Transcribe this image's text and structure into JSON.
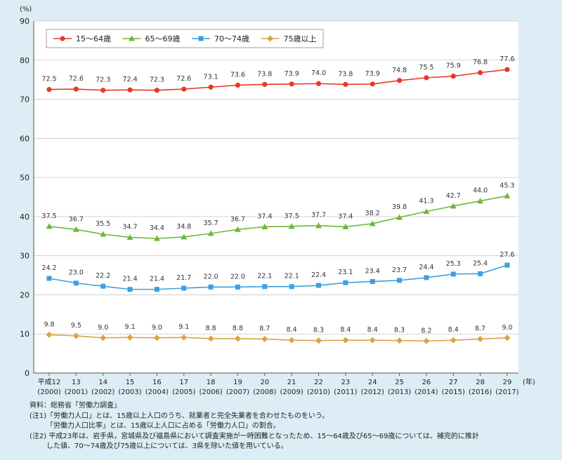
{
  "chart_data": {
    "type": "line",
    "unit_label": "(%)",
    "x_unit_label": "(年)",
    "ylim": [
      0,
      90
    ],
    "yticks": [
      0,
      10,
      20,
      30,
      40,
      50,
      60,
      70,
      80,
      90
    ],
    "legend_position": "top-left",
    "grid": true,
    "categories": [
      {
        "line1": "平成12",
        "line2": "(2000)"
      },
      {
        "line1": "13",
        "line2": "(2001)"
      },
      {
        "line1": "14",
        "line2": "(2002)"
      },
      {
        "line1": "15",
        "line2": "(2003)"
      },
      {
        "line1": "16",
        "line2": "(2004)"
      },
      {
        "line1": "17",
        "line2": "(2005)"
      },
      {
        "line1": "18",
        "line2": "(2006)"
      },
      {
        "line1": "19",
        "line2": "(2007)"
      },
      {
        "line1": "20",
        "line2": "(2008)"
      },
      {
        "line1": "21",
        "line2": "(2009)"
      },
      {
        "line1": "22",
        "line2": "(2010)"
      },
      {
        "line1": "23",
        "line2": "(2011)"
      },
      {
        "line1": "24",
        "line2": "(2012)"
      },
      {
        "line1": "25",
        "line2": "(2013)"
      },
      {
        "line1": "26",
        "line2": "(2014)"
      },
      {
        "line1": "27",
        "line2": "(2015)"
      },
      {
        "line1": "28",
        "line2": "(2016)"
      },
      {
        "line1": "29",
        "line2": "(2017)"
      }
    ],
    "series": [
      {
        "name": "15～64歳",
        "color": "#e8382a",
        "marker": "circle",
        "values": [
          72.5,
          72.6,
          72.3,
          72.4,
          72.3,
          72.6,
          73.1,
          73.6,
          73.8,
          73.9,
          74.0,
          73.8,
          73.9,
          74.8,
          75.5,
          75.9,
          76.8,
          77.6
        ]
      },
      {
        "name": "65～69歳",
        "color": "#6cb83a",
        "marker": "triangle",
        "values": [
          37.5,
          36.7,
          35.5,
          34.7,
          34.4,
          34.8,
          35.7,
          36.7,
          37.4,
          37.5,
          37.7,
          37.4,
          38.2,
          39.8,
          41.3,
          42.7,
          44.0,
          45.3
        ]
      },
      {
        "name": "70～74歳",
        "color": "#3f9fdc",
        "marker": "square",
        "values": [
          24.2,
          23.0,
          22.2,
          21.4,
          21.4,
          21.7,
          22.0,
          22.0,
          22.1,
          22.1,
          22.4,
          23.1,
          23.4,
          23.7,
          24.4,
          25.3,
          25.4,
          27.6
        ]
      },
      {
        "name": "75歳以上",
        "color": "#d9a441",
        "marker": "diamond",
        "values": [
          9.8,
          9.5,
          9.0,
          9.1,
          9.0,
          9.1,
          8.8,
          8.8,
          8.7,
          8.4,
          8.3,
          8.4,
          8.4,
          8.3,
          8.2,
          8.4,
          8.7,
          9.0
        ]
      }
    ]
  },
  "notes": {
    "source": "資料：総務省「労働力調査」",
    "note1": "(注1)「労働力人口」とは、15歳以上人口のうち、就業者と完全失業者を合わせたものをいう。",
    "note1b": "「労働力人口比率」とは、15歳以上人口に占める「労働力人口」の割合。",
    "note2": "(注2) 平成23年は、岩手県，宮城県及び福島県において調査実施が一時困難となったため、15～64歳及び65～69歳については、補完的に推計",
    "note2b": "した値、70～74歳及び75歳以上については、3県を除いた値を用いている。"
  }
}
